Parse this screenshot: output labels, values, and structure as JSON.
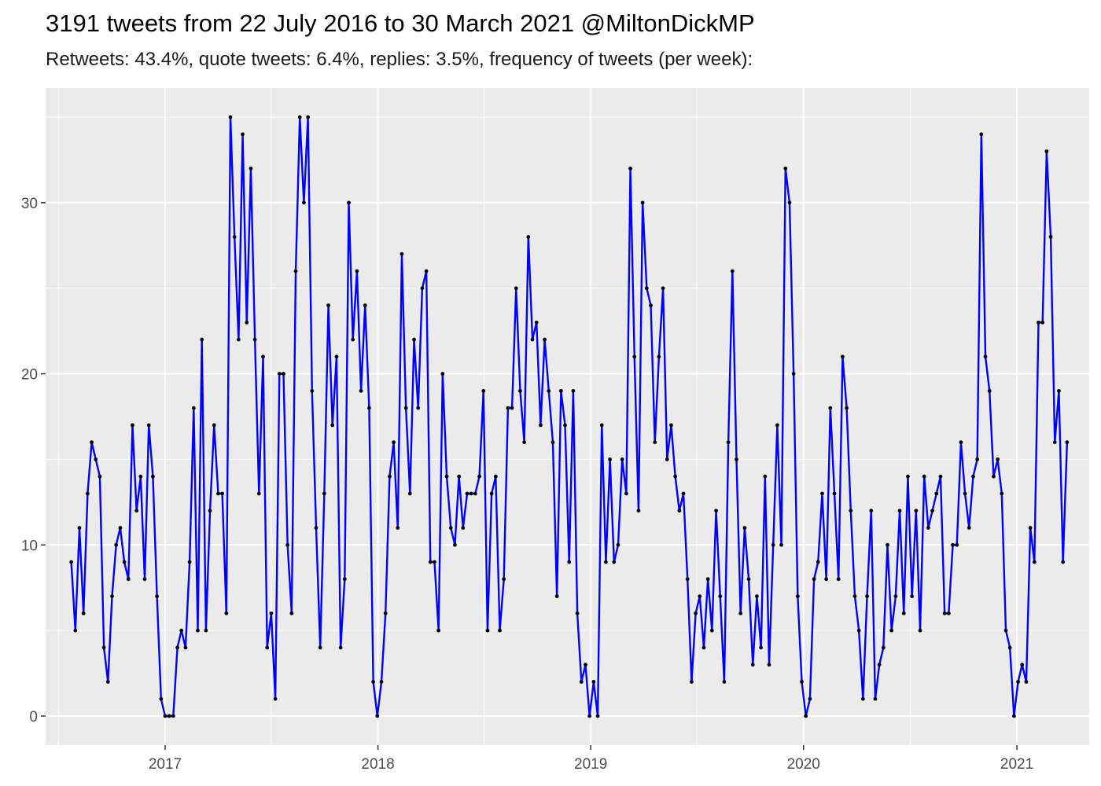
{
  "title": "3191 tweets from 22 July 2016 to 30 March 2021 @MiltonDickMP",
  "subtitle": "Retweets: 43.4%, quote tweets: 6.4%, replies: 3.5%, frequency of tweets (per week):",
  "colors": {
    "line": "#0000ff",
    "point": "#000000",
    "panel": "#ebebeb",
    "grid": "#ffffff"
  },
  "chart_data": {
    "type": "line",
    "title": "3191 tweets from 22 July 2016 to 30 March 2021 @MiltonDickMP",
    "subtitle": "Retweets: 43.4%, quote tweets: 6.4%, replies: 3.5%, frequency of tweets (per week):",
    "xlabel": "",
    "ylabel": "",
    "x_start": "2016-07-24",
    "x_interval": "1 week",
    "xlim": [
      "2016-06-10",
      "2021-05-05"
    ],
    "ylim": [
      -1.7,
      36.7
    ],
    "x_ticks": [
      "2017",
      "2018",
      "2019",
      "2020",
      "2021"
    ],
    "y_ticks": [
      0,
      10,
      20,
      30
    ],
    "grid": true,
    "legend": "none",
    "series": [
      {
        "values": [
          9,
          5,
          11,
          6,
          13,
          16,
          15,
          14,
          4,
          2,
          7,
          10,
          11,
          9,
          8,
          17,
          12,
          14,
          8,
          17,
          14,
          7,
          1,
          0,
          0,
          0,
          4,
          5,
          4,
          9,
          18,
          5,
          22,
          5,
          12,
          17,
          13,
          13,
          6,
          35,
          28,
          22,
          34,
          23,
          32,
          22,
          13,
          21,
          4,
          6,
          1,
          20,
          20,
          10,
          6,
          26,
          35,
          30,
          35,
          19,
          11,
          4,
          13,
          24,
          17,
          21,
          4,
          8,
          30,
          22,
          26,
          19,
          24,
          18,
          2,
          0,
          2,
          6,
          14,
          16,
          11,
          27,
          18,
          13,
          22,
          18,
          25,
          26,
          9,
          9,
          5,
          20,
          14,
          11,
          10,
          14,
          11,
          13,
          13,
          13,
          14,
          19,
          5,
          13,
          14,
          5,
          8,
          18,
          18,
          25,
          19,
          16,
          28,
          22,
          23,
          17,
          22,
          19,
          16,
          7,
          19,
          17,
          9,
          19,
          6,
          2,
          3,
          0,
          2,
          0,
          17,
          9,
          15,
          9,
          10,
          15,
          13,
          32,
          21,
          12,
          30,
          25,
          24,
          16,
          21,
          25,
          15,
          17,
          14,
          12,
          13,
          8,
          2,
          6,
          7,
          4,
          8,
          5,
          12,
          7,
          2,
          16,
          26,
          15,
          6,
          11,
          8,
          3,
          7,
          4,
          14,
          3,
          10,
          17,
          10,
          32,
          30,
          20,
          7,
          2,
          0,
          1,
          8,
          9,
          13,
          8,
          18,
          13,
          8,
          21,
          18,
          12,
          7,
          5,
          1,
          7,
          12,
          1,
          3,
          4,
          10,
          5,
          7,
          12,
          6,
          14,
          7,
          12,
          5,
          14,
          11,
          12,
          13,
          14,
          6,
          6,
          10,
          10,
          16,
          13,
          11,
          14,
          15,
          34,
          21,
          19,
          14,
          15,
          13,
          5,
          4,
          0,
          2,
          3,
          2,
          11,
          9,
          23,
          23,
          33,
          28,
          16,
          19,
          9,
          16
        ]
      }
    ]
  }
}
